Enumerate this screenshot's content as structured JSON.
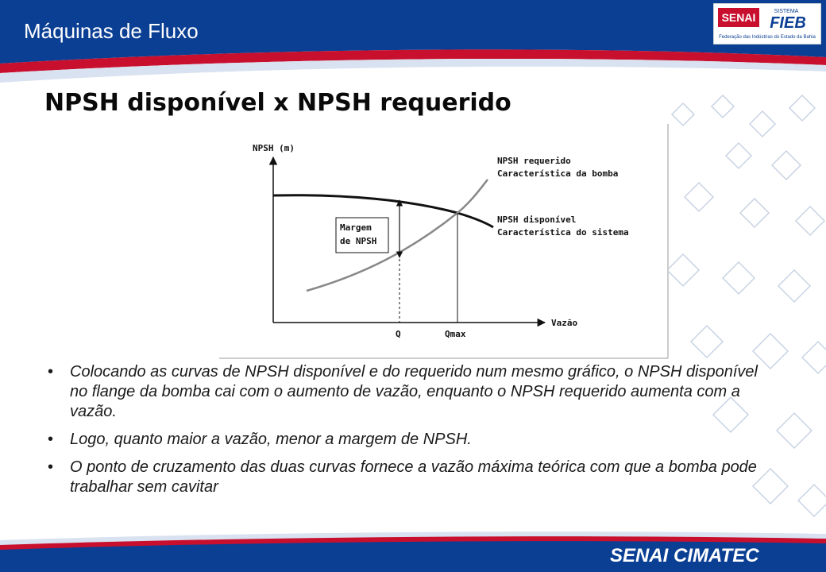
{
  "header": {
    "title": "Máquinas de Fluxo",
    "colors": {
      "blue": "#0b3f94",
      "red": "#c8102e"
    }
  },
  "logo": {
    "brand_left": "SENAI",
    "brand_right": "FIEB",
    "sistema": "SISTEMA",
    "subtitle": "Federação das Indústrias do Estado da Bahia"
  },
  "slide": {
    "title": "NPSH disponível x NPSH requerido"
  },
  "diagram": {
    "y_axis_label": "NPSH (m)",
    "x_axis_label": "Vazão",
    "x_ticks": [
      "Q",
      "Qmax"
    ],
    "margin_label_line1": "Margem",
    "margin_label_line2": "de NPSH",
    "required_label_line1": "NPSH requerido",
    "required_label_line2": "Característica da bomba",
    "available_label_line1": "NPSH disponível",
    "available_label_line2": "Característica do sistema"
  },
  "bullets": [
    "Colocando as curvas de NPSH disponível e do requerido num mesmo gráfico, o NPSH disponível no flange da bomba cai com o aumento de vazão, enquanto o NPSH requerido aumenta com a vazão.",
    "Logo, quanto maior a vazão, menor a margem de NPSH.",
    "O ponto de cruzamento das duas curvas fornece a vazão máxima teórica com que a bomba pode trabalhar sem cavitar"
  ],
  "bullet_glyph": "•",
  "footer": {
    "text": "SENAI CIMATEC"
  }
}
